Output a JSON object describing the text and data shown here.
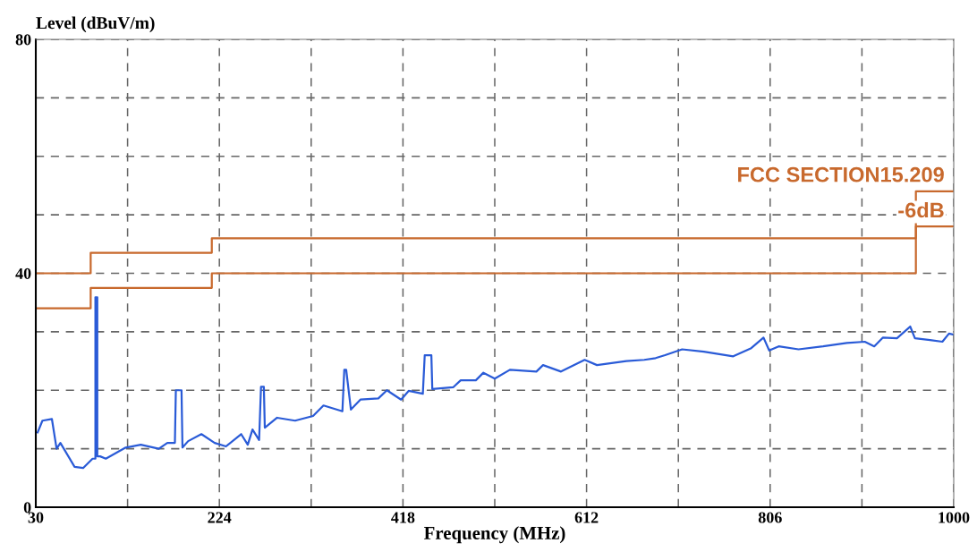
{
  "chart_data": {
    "type": "line",
    "xlabel": "Frequency (MHz)",
    "ylabel": "Level (dBuV/m)",
    "xlim": [
      30,
      1000
    ],
    "ylim": [
      0,
      80
    ],
    "xticks": [
      30,
      {
        "value": 127,
        "label": null
      },
      224,
      {
        "value": 321,
        "label": null
      },
      418,
      {
        "value": 515,
        "label": null
      },
      612,
      {
        "value": 709,
        "label": null
      },
      806,
      {
        "value": 903,
        "label": null
      },
      1000
    ],
    "yticks": [
      0,
      {
        "value": 10,
        "label": null
      },
      {
        "value": 20,
        "label": null
      },
      {
        "value": 30,
        "label": null
      },
      40,
      {
        "value": 50,
        "label": null
      },
      {
        "value": 60,
        "label": null
      },
      {
        "value": 70,
        "label": null
      },
      80
    ],
    "grid": true,
    "legend": false,
    "series": [
      {
        "color": "#2a5bd7",
        "x": [
          32,
          37,
          47,
          52,
          56,
          71,
          80,
          90,
          93,
          93,
          95,
          95,
          98,
          104,
          125,
          141,
          160,
          169,
          177,
          178,
          184,
          185,
          191,
          205,
          219,
          231,
          247,
          254,
          259,
          266,
          268,
          271,
          272,
          285,
          304,
          323,
          334,
          354,
          356,
          358,
          363,
          373,
          392,
          401,
          416,
          424,
          439,
          441,
          448,
          449,
          471,
          479,
          495,
          503,
          515,
          531,
          559,
          566,
          585,
          610,
          623,
          654,
          673,
          685,
          695,
          713,
          736,
          767,
          786,
          799,
          805,
          815,
          836,
          862,
          887,
          906,
          916,
          925,
          940,
          954,
          959,
          975,
          988,
          995,
          1000
        ],
        "values": [
          12.8,
          14.8,
          15.1,
          10,
          11,
          6.9,
          6.7,
          8.3,
          8.3,
          35.9,
          35.9,
          8.7,
          8.7,
          8.3,
          10.2,
          10.7,
          10,
          11,
          11,
          20,
          20,
          10.2,
          11.3,
          12.5,
          11,
          10.4,
          12.5,
          10.7,
          13.3,
          11.5,
          20.6,
          20.6,
          13.6,
          15.3,
          14.8,
          15.6,
          17.4,
          16.4,
          23.5,
          23.5,
          16.7,
          18.4,
          18.6,
          20,
          18.4,
          19.9,
          19.4,
          26,
          26,
          20.2,
          20.5,
          21.7,
          21.7,
          23,
          22,
          23.5,
          23.2,
          24.3,
          23.2,
          25.2,
          24.3,
          25,
          25.2,
          25.5,
          26,
          27,
          26.6,
          25.8,
          27.2,
          29,
          26.8,
          27.5,
          27,
          27.5,
          28.1,
          28.3,
          27.5,
          29,
          28.9,
          30.9,
          28.9,
          28.6,
          28.3,
          29.7,
          29.5
        ]
      },
      {
        "color": "#c8692d",
        "x": [
          30,
          88,
          88,
          216,
          216,
          960,
          960,
          1000
        ],
        "values": [
          40,
          40,
          43.5,
          43.5,
          46,
          46,
          54,
          54
        ]
      },
      {
        "color": "#c8692d",
        "x": [
          30,
          88,
          88,
          216,
          216,
          960,
          960,
          1000
        ],
        "values": [
          34,
          34,
          37.5,
          37.5,
          40,
          40,
          48,
          48
        ]
      }
    ],
    "annotations": [
      "FCC SECTION15.209",
      "-6dB"
    ]
  }
}
